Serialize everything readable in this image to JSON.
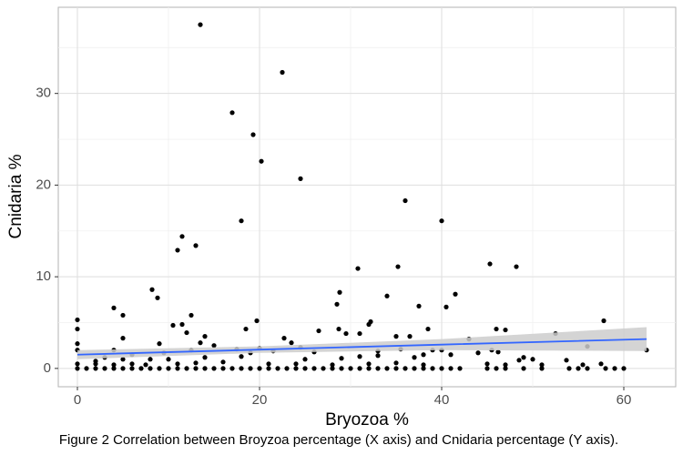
{
  "chart_data": {
    "type": "scatter",
    "caption": "Figure 2 Correlation between Broyzoa percentage (X axis) and Cnidaria percentage (Y axis).",
    "x_label": "Bryozoa %",
    "y_label": "Cnidaria %",
    "xlim": [
      -2.1,
      65.7
    ],
    "ylim": [
      -2.0,
      39.4
    ],
    "xticks": [
      0,
      20,
      40,
      60
    ],
    "yticks": [
      0,
      10,
      20,
      30
    ],
    "minor_xticks": [
      10,
      30,
      50
    ],
    "minor_yticks": [
      5,
      15,
      25,
      35
    ],
    "grid": true,
    "color": "#000000",
    "x": [
      13.5,
      22.5,
      17,
      19.3,
      20.2,
      24.5,
      36,
      18,
      40,
      11.5,
      13,
      11,
      45.3,
      48.2,
      35.2,
      30.8,
      8.2,
      28.8,
      41.5,
      8.8,
      34,
      28.5,
      40.5,
      37.5,
      4,
      12.5,
      5,
      0,
      19.7,
      32.2,
      57.8,
      32,
      10.5,
      11.5,
      0,
      18.5,
      28.7,
      38.5,
      46,
      47,
      52.5,
      26.5,
      29.5,
      31,
      35,
      22.7,
      36.5,
      43,
      12,
      14,
      5,
      0,
      9,
      13.5,
      15,
      23.5,
      24.5,
      17.5,
      20,
      21.5,
      26,
      33,
      35.5,
      39,
      40,
      44,
      45.5,
      46.2,
      56,
      62.5,
      0,
      4,
      3,
      6,
      9.5,
      12.5,
      19,
      33,
      38,
      41,
      49,
      2,
      5,
      8,
      10,
      14,
      18,
      25,
      29,
      31,
      37,
      48.5,
      50,
      53.7,
      0,
      2,
      4,
      6,
      7.5,
      11,
      13,
      16,
      21,
      24,
      28,
      32,
      35,
      38,
      45,
      47,
      51,
      55.5,
      57.5,
      0,
      1,
      2,
      3,
      4,
      5,
      6,
      7,
      8,
      9,
      10,
      11,
      12,
      13,
      14,
      15,
      16,
      17,
      18,
      19,
      20,
      21,
      22,
      23,
      24,
      25,
      26,
      27,
      28,
      29,
      30,
      31,
      32,
      33,
      34,
      35,
      36,
      37,
      38,
      39,
      40,
      41,
      42,
      45,
      46,
      47,
      49,
      51,
      54,
      55,
      56,
      58,
      59,
      60
    ],
    "values": [
      37.5,
      32.3,
      27.9,
      25.5,
      22.6,
      20.7,
      18.3,
      16.1,
      16.1,
      14.4,
      13.4,
      12.9,
      11.4,
      11.1,
      11.1,
      10.9,
      8.6,
      8.3,
      8.1,
      7.7,
      7.9,
      7,
      6.7,
      6.8,
      6.6,
      5.8,
      5.8,
      5.3,
      5.2,
      5.1,
      5.2,
      4.8,
      4.7,
      4.8,
      4.3,
      4.3,
      4.3,
      4.3,
      4.3,
      4.2,
      3.8,
      4.1,
      3.8,
      3.8,
      3.5,
      3.3,
      3.5,
      3.2,
      3.9,
      3.5,
      3.3,
      2.7,
      2.7,
      2.8,
      2.5,
      2.8,
      2.3,
      2.1,
      2.2,
      1.9,
      1.8,
      1.9,
      2.1,
      2,
      2,
      1.7,
      2,
      1.8,
      2.4,
      2,
      2,
      2,
      1.2,
      1.5,
      1.7,
      2,
      1.7,
      1.4,
      1.5,
      1.5,
      1.2,
      0.8,
      1,
      1,
      1,
      1.2,
      1.3,
      1,
      1.1,
      1.3,
      1.2,
      0.9,
      1,
      0.9,
      0.5,
      0.5,
      0.4,
      0.5,
      0.4,
      0.5,
      0.6,
      0.7,
      0.5,
      0.5,
      0.4,
      0.5,
      0.6,
      0.4,
      0.5,
      0.4,
      0.4,
      0.4,
      0.5,
      0,
      0,
      0,
      0,
      0,
      0,
      0,
      0,
      0,
      0,
      0,
      0,
      0,
      0,
      0,
      0,
      0,
      0,
      0,
      0,
      0,
      0,
      0,
      0,
      0,
      0,
      0,
      0,
      0,
      0,
      0,
      0,
      0,
      0,
      0,
      0,
      0,
      0,
      0,
      0,
      0,
      0,
      0,
      0,
      0,
      0,
      0,
      0,
      0,
      0,
      0,
      0,
      0,
      0
    ],
    "trend": {
      "color": "#3366ff",
      "band_color": "#cccccc",
      "x": [
        0,
        20,
        40,
        62.5
      ],
      "values": [
        1.5,
        2.05,
        2.6,
        3.2
      ],
      "lower": [
        1.0,
        1.7,
        2.0,
        1.9
      ],
      "upper": [
        2.0,
        2.4,
        3.2,
        4.5
      ]
    }
  }
}
